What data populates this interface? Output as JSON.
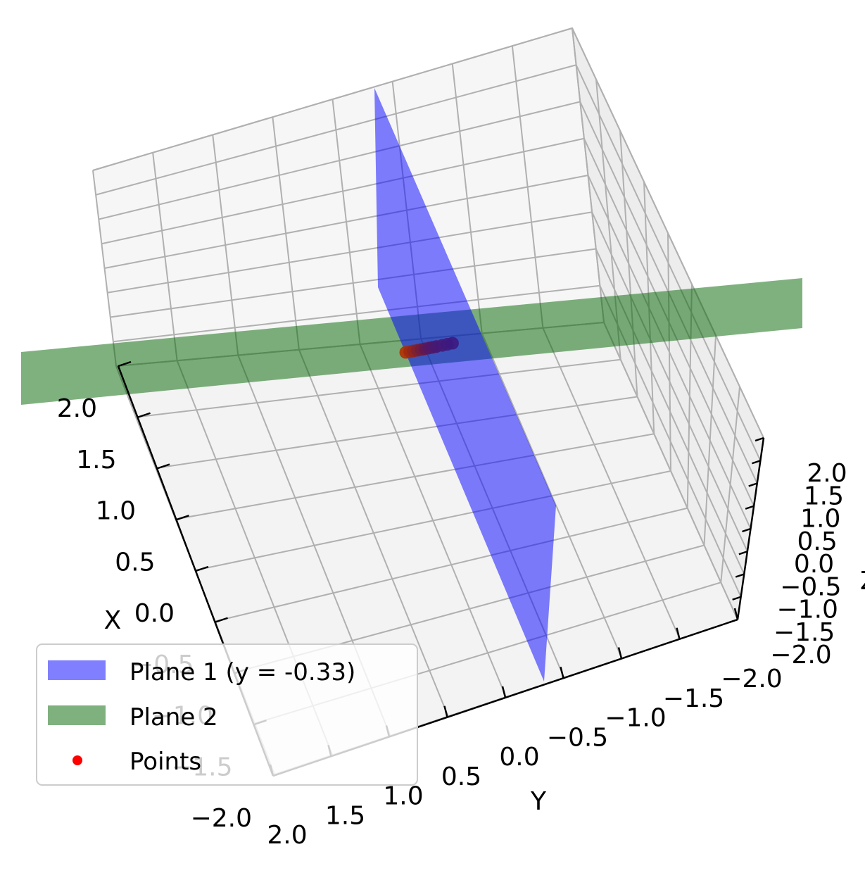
{
  "chart_data": {
    "type": "scatter",
    "view": "3d",
    "xlabel": "X",
    "ylabel": "Y",
    "zlabel": "Z",
    "xlim": [
      -2,
      2
    ],
    "ylim": [
      -2,
      2
    ],
    "zlim": [
      -2,
      2
    ],
    "grid": true,
    "legend_position": "lower-left",
    "ticks": {
      "x": [
        "2.0",
        "1.5",
        "1.0",
        "0.5",
        "0.0",
        "−0.5",
        "−1.0",
        "−1.5",
        "−2.0"
      ],
      "y": [
        "2.0",
        "1.5",
        "1.0",
        "0.5",
        "0.0",
        "−0.5",
        "−1.0",
        "−1.5",
        "−2.0"
      ],
      "z": [
        "2.0",
        "1.5",
        "1.0",
        "0.5",
        "0.0",
        "−0.5",
        "−1.0",
        "−1.5",
        "−2.0"
      ]
    },
    "series": [
      {
        "name": "Plane 1 (y = -0.33)",
        "kind": "surface",
        "color": "#0000ff",
        "alpha": 0.5
      },
      {
        "name": "Plane 2",
        "kind": "surface",
        "color": "#006400",
        "alpha": 0.5
      },
      {
        "name": "Points",
        "kind": "scatter",
        "color": "#ff0000",
        "points": [
          [
            -0.05,
            0.0
          ],
          [
            -0.02,
            -0.05
          ],
          [
            0.0,
            -0.1
          ],
          [
            0.03,
            -0.15
          ],
          [
            0.05,
            -0.2
          ],
          [
            0.07,
            -0.25
          ],
          [
            0.09,
            -0.3
          ],
          [
            0.11,
            -0.35
          ],
          [
            0.13,
            -0.4
          ],
          [
            0.16,
            -0.48
          ],
          [
            0.18,
            -0.55
          ],
          [
            0.2,
            -0.62
          ]
        ]
      }
    ]
  }
}
